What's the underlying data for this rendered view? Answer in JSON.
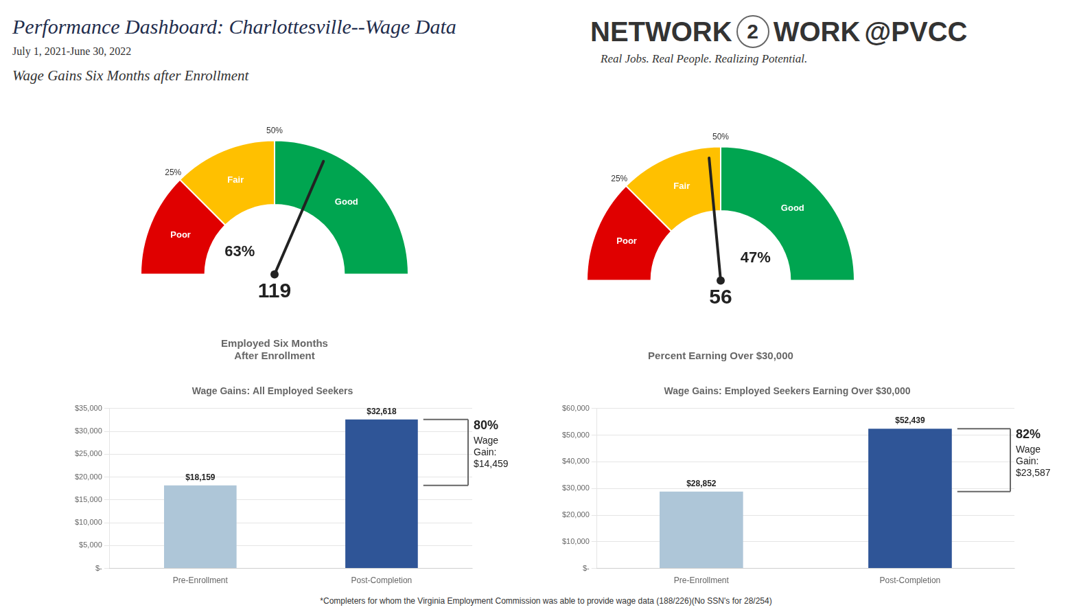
{
  "title": "Performance Dashboard: Charlottesville--Wage Data",
  "subtitle": "July 1, 2021-June 30, 2022",
  "annotations": [
    "Wage Gains Six Months after Enrollment",
    "NETWORK",
    "2",
    "WORK",
    "@",
    "PVCC",
    "Real Jobs. Real People. Realizing Potential.",
    "*Completers for whom the Virginia Employment Commission was able to provide wage data (188/226)(No SSN's for 28/254)"
  ],
  "chart_data": [
    {
      "type": "gauge",
      "title": "Employed Six Months\nAfter Enrollment",
      "categories": [
        "Poor",
        "Fair",
        "Good"
      ],
      "values": [
        25,
        25,
        50
      ],
      "colors": [
        "#e00000",
        "#ffc000",
        "#00a550"
      ],
      "xlim": [
        0,
        100
      ],
      "xticks": [
        {
          "value": 25,
          "label": "25%"
        },
        {
          "value": 50,
          "label": "50%"
        }
      ],
      "count": 119,
      "needle": 63,
      "needle_label": "63%"
    },
    {
      "type": "gauge",
      "title": "Percent Earning Over $30,000",
      "categories": [
        "Poor",
        "Fair",
        "Good"
      ],
      "values": [
        25,
        25,
        50
      ],
      "colors": [
        "#e00000",
        "#ffc000",
        "#00a550"
      ],
      "xlim": [
        0,
        100
      ],
      "xticks": [
        {
          "value": 25,
          "label": "25%"
        },
        {
          "value": 50,
          "label": "50%"
        }
      ],
      "count": 56,
      "needle": 47,
      "needle_label": "47%"
    },
    {
      "type": "bar",
      "title": "Wage Gains: All Employed Seekers",
      "categories": [
        "Pre-Enrollment",
        "Post-Completion"
      ],
      "values": [
        18159,
        32618
      ],
      "value_labels": [
        "$18,159",
        "$32,618"
      ],
      "data_labels": true,
      "colors": [
        "#aec6d8",
        "#2f5597"
      ],
      "ylim": [
        0,
        35000
      ],
      "yticks": [
        {
          "value": 0,
          "label": "$-"
        },
        {
          "value": 5000,
          "label": "$5,000"
        },
        {
          "value": 10000,
          "label": "$10,000"
        },
        {
          "value": 15000,
          "label": "$15,000"
        },
        {
          "value": 20000,
          "label": "$20,000"
        },
        {
          "value": 25000,
          "label": "$25,000"
        },
        {
          "value": 30000,
          "label": "$30,000"
        },
        {
          "value": 35000,
          "label": "$35,000"
        }
      ],
      "grid": true,
      "annotations": [
        "80%",
        "Wage\nGain:\n$14,459"
      ]
    },
    {
      "type": "bar",
      "title": "Wage Gains: Employed Seekers Earning Over $30,000",
      "categories": [
        "Pre-Enrollment",
        "Post-Completion"
      ],
      "values": [
        28852,
        52439
      ],
      "value_labels": [
        "$28,852",
        "$52,439"
      ],
      "data_labels": true,
      "colors": [
        "#aec6d8",
        "#2f5597"
      ],
      "ylim": [
        0,
        60000
      ],
      "yticks": [
        {
          "value": 0,
          "label": "$-"
        },
        {
          "value": 10000,
          "label": "$10,000"
        },
        {
          "value": 20000,
          "label": "$20,000"
        },
        {
          "value": 30000,
          "label": "$30,000"
        },
        {
          "value": 40000,
          "label": "$40,000"
        },
        {
          "value": 50000,
          "label": "$50,000"
        },
        {
          "value": 60000,
          "label": "$60,000"
        }
      ],
      "grid": true,
      "annotations": [
        "82%",
        "Wage\nGain:\n$23,587"
      ]
    }
  ]
}
